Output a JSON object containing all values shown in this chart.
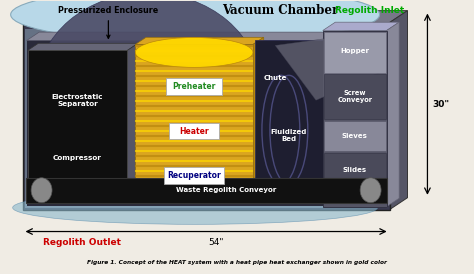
{
  "bg_color": "#f0ece4",
  "vacuum_chamber_label": "Vacuum Chamber",
  "pressurized_enclosure_label": "Pressurized Enclosure",
  "regolith_inlet_label": "Regolith Inlet",
  "regolith_outlet_label": "Regolith Outlet",
  "inlet_color": "#00aa00",
  "outlet_color": "#cc0000",
  "dim_54": "54\"",
  "dim_30": "30\"",
  "preheater_color": "#228B22",
  "heater_color": "#cc0000",
  "recuperator_color": "#000080",
  "gold_dark": "#B8860B",
  "gold_bright": "#FFD700",
  "gold_mid": "#DAA520",
  "conveyor_dark": "#111111",
  "cylinder_color": "#888888",
  "top_enclosure_color": "#b8d8e8",
  "dark_box": "#111111",
  "panel_dark": "#2a2a3a",
  "panel_mid": "#444455",
  "panel_light": "#8888aa",
  "hopper_color": "#999aaa",
  "gray_light": "#aaaabb",
  "outer_box_color": "#3a3a3a",
  "inner_bg": "#3a3a55",
  "caption": "Figure 1. Concept of the HEAT system with a heat pipe heat exchanger shown in gold color"
}
